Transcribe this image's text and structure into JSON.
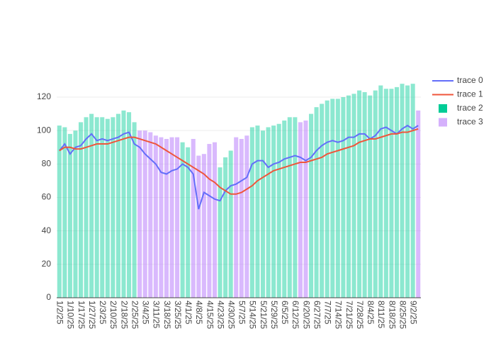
{
  "chart_data": {
    "type": "bar_line",
    "categories": [
      "1/2/25",
      null,
      "1/10/25",
      null,
      "1/17/25",
      null,
      "1/27/25",
      null,
      "2/3/25",
      null,
      "2/10/25",
      null,
      "2/18/25",
      null,
      "2/25/25",
      null,
      "3/4/25",
      null,
      "3/11/25",
      null,
      "3/18/25",
      null,
      "3/25/25",
      null,
      "4/1/25",
      null,
      "4/8/25",
      null,
      "4/15/25",
      null,
      "4/23/25",
      null,
      "4/30/25",
      null,
      "5/7/25",
      null,
      "5/14/25",
      null,
      "5/21/25",
      null,
      "5/29/25",
      null,
      "6/5/25",
      null,
      "6/12/25",
      null,
      "6/20/25",
      null,
      "6/27/25",
      null,
      "7/7/25",
      null,
      "7/14/25",
      null,
      "7/21/25",
      null,
      "7/28/25",
      null,
      "8/4/25",
      null,
      "8/11/25",
      null,
      "8/18/25",
      null,
      "8/25/25",
      null,
      "9/2/25",
      null
    ],
    "series": [
      {
        "name": "trace 0",
        "kind": "line",
        "color": "#636efa",
        "values": [
          88,
          92,
          86,
          90,
          91,
          95,
          98,
          94,
          95,
          94,
          95,
          96,
          98,
          99,
          92,
          90,
          86,
          83,
          80,
          75,
          74,
          76,
          77,
          80,
          78,
          74,
          53,
          63,
          61,
          59,
          58,
          64,
          67,
          68,
          70,
          72,
          80,
          82,
          82,
          78,
          80,
          81,
          83,
          84,
          85,
          84,
          82,
          84,
          88,
          91,
          93,
          94,
          93,
          94,
          96,
          96,
          98,
          98,
          95,
          97,
          101,
          102,
          100,
          98,
          101,
          103,
          101,
          103
        ]
      },
      {
        "name": "trace 1",
        "kind": "line",
        "color": "#ef553b",
        "values": [
          88,
          90,
          90,
          89,
          89,
          90,
          91,
          92,
          92,
          92,
          93,
          94,
          95,
          96,
          96,
          95,
          94,
          93,
          92,
          90,
          88,
          86,
          84,
          82,
          80,
          78,
          76,
          74,
          71,
          69,
          66,
          64,
          62,
          62,
          63,
          65,
          67,
          70,
          72,
          74,
          76,
          77,
          78,
          79,
          80,
          81,
          81,
          82,
          83,
          84,
          86,
          87,
          88,
          89,
          90,
          91,
          93,
          94,
          95,
          95,
          96,
          97,
          98,
          98,
          99,
          99,
          100,
          101
        ]
      },
      {
        "name": "trace 2",
        "kind": "bar",
        "color": "#00cc96",
        "values": [
          103,
          102,
          98,
          100,
          105,
          108,
          110,
          108,
          108,
          107,
          108,
          110,
          112,
          111,
          105,
          null,
          null,
          null,
          null,
          null,
          null,
          null,
          null,
          93,
          90,
          null,
          null,
          null,
          null,
          null,
          78,
          84,
          88,
          null,
          null,
          null,
          102,
          103,
          100,
          102,
          103,
          104,
          106,
          108,
          108,
          null,
          null,
          110,
          114,
          116,
          118,
          119,
          119,
          120,
          121,
          122,
          124,
          123,
          121,
          124,
          127,
          125,
          125,
          126,
          128,
          127,
          128,
          null
        ]
      },
      {
        "name": "trace 3",
        "kind": "bar",
        "color": "#ab63fa",
        "values": [
          null,
          null,
          null,
          null,
          null,
          null,
          null,
          null,
          null,
          null,
          null,
          null,
          null,
          null,
          null,
          100,
          100,
          99,
          97,
          96,
          95,
          96,
          96,
          null,
          null,
          95,
          85,
          86,
          92,
          93,
          null,
          null,
          null,
          96,
          95,
          97,
          null,
          null,
          null,
          null,
          null,
          null,
          null,
          null,
          null,
          105,
          106,
          null,
          null,
          null,
          null,
          null,
          null,
          null,
          null,
          null,
          null,
          null,
          null,
          null,
          null,
          null,
          null,
          null,
          null,
          null,
          null,
          112
        ]
      }
    ],
    "ylim": [
      0,
      135.7
    ],
    "yticks": [
      0,
      20,
      40,
      60,
      80,
      100,
      120
    ],
    "grid": true
  }
}
